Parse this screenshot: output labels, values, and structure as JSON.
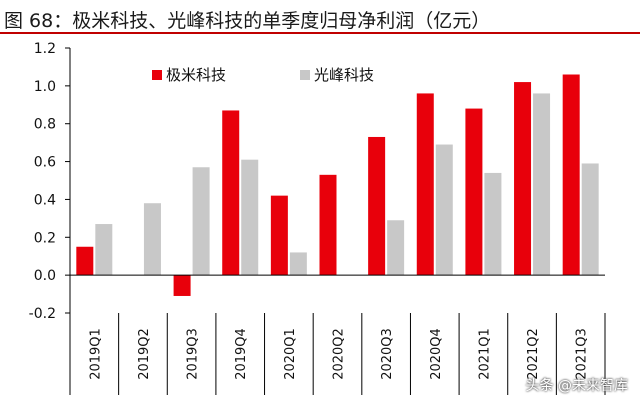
{
  "title": "图 68：极米科技、光峰科技的单季度归母净利润（亿元）",
  "watermark": "头条 @未来智库",
  "colors": {
    "series_1": "#e8000b",
    "series_2": "#c8c8c8",
    "axis": "#000000",
    "title_rule": "#c00000"
  },
  "chart_data": {
    "type": "bar",
    "title": "",
    "xlabel": "",
    "ylabel": "",
    "categories": [
      "2019Q1",
      "2019Q2",
      "2019Q3",
      "2019Q4",
      "2020Q1",
      "2020Q2",
      "2020Q3",
      "2020Q4",
      "2021Q1",
      "2021Q2",
      "2021Q3"
    ],
    "series": [
      {
        "name": "极米科技",
        "color": "#e8000b",
        "values": [
          0.15,
          null,
          -0.11,
          0.87,
          0.42,
          0.53,
          0.73,
          0.96,
          0.88,
          1.02,
          1.06
        ]
      },
      {
        "name": "光峰科技",
        "color": "#c8c8c8",
        "values": [
          0.27,
          0.38,
          0.57,
          0.61,
          0.12,
          null,
          0.29,
          0.69,
          0.54,
          0.96,
          0.59
        ]
      }
    ],
    "ylim": [
      -0.2,
      1.2
    ],
    "yticks": [
      1.2,
      1.0,
      0.8,
      0.6,
      0.4,
      0.2,
      0.0,
      -0.2
    ],
    "ytick_labels": [
      "1.2",
      "1.0",
      "0.8",
      "0.6",
      "0.4",
      "0.2",
      "0.0",
      "-0.2"
    ],
    "grid": false,
    "legend_position": "top-left"
  }
}
